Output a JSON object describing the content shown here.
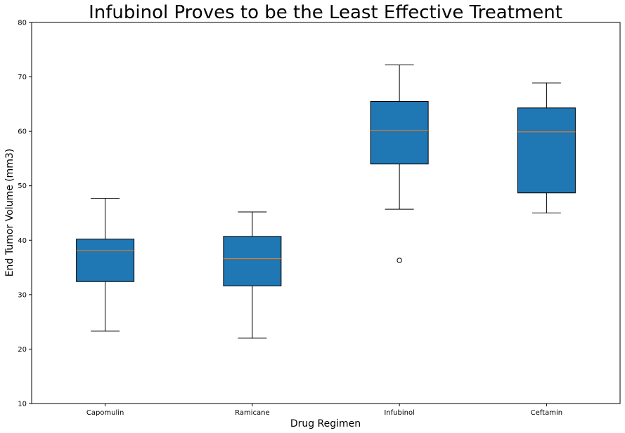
{
  "chart_data": {
    "type": "box",
    "title": "Infubinol Proves to be the Least Effective Treatment",
    "xlabel": "Drug Regimen",
    "ylabel": "End Tumor Volume (mm3)",
    "ylim": [
      10,
      80
    ],
    "yticks": [
      10,
      20,
      30,
      40,
      50,
      60,
      70,
      80
    ],
    "grid": false,
    "box_color": "#1f77b4",
    "median_color": "#ff7f0e",
    "categories": [
      "Capomulin",
      "Ramicane",
      "Infubinol",
      "Ceftamin"
    ],
    "boxes": [
      {
        "whisker_low": 23.3,
        "q1": 32.4,
        "median": 38.1,
        "q3": 40.2,
        "whisker_high": 47.7,
        "outliers": []
      },
      {
        "whisker_low": 22.0,
        "q1": 31.6,
        "median": 36.6,
        "q3": 40.7,
        "whisker_high": 45.2,
        "outliers": []
      },
      {
        "whisker_low": 45.7,
        "q1": 54.0,
        "median": 60.2,
        "q3": 65.5,
        "whisker_high": 72.2,
        "outliers": [
          36.3
        ]
      },
      {
        "whisker_low": 45.0,
        "q1": 48.7,
        "median": 59.9,
        "q3": 64.3,
        "whisker_high": 68.9,
        "outliers": []
      }
    ]
  }
}
